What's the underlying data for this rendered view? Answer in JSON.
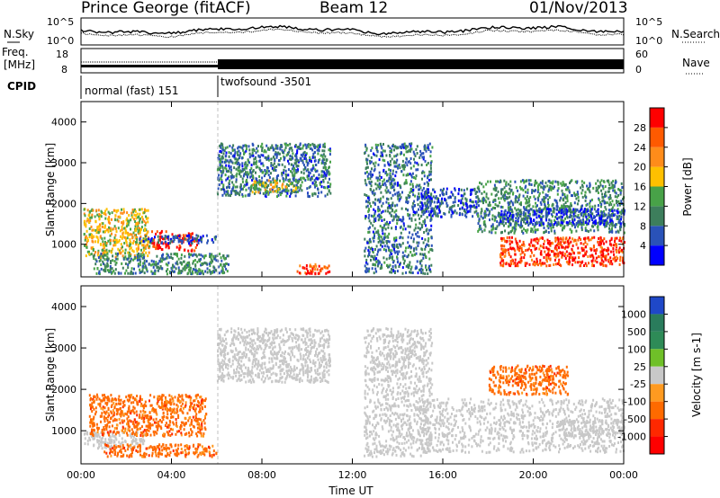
{
  "header": {
    "station": "Prince George (fitACF)",
    "beam": "Beam 12",
    "date": "01/Nov/2013"
  },
  "summary": {
    "nsky_label": "N.Sky",
    "nsearch_label": "N.Search",
    "noise_ticks": [
      "10^5",
      "10^0"
    ],
    "freq_label_1": "Freq.",
    "freq_label_2": "[MHz]",
    "freq_ticks": [
      "18",
      "8"
    ],
    "nave_label": "Nave",
    "nave_ticks": [
      "60",
      "0"
    ],
    "cpid_label": "CPID",
    "cpid_programs": [
      {
        "name": "normal (fast) 151",
        "start_hour": 0
      },
      {
        "name": "twofsound -3501",
        "start_hour": 6
      }
    ]
  },
  "colors": {
    "power_scale": [
      "#0000ff",
      "#2a52b8",
      "#3d7e5c",
      "#48a248",
      "#ffc000",
      "#ff8c1a",
      "#ff5a00",
      "#ff0000"
    ],
    "velocity_scale": [
      "#1f48c8",
      "#2a7c5c",
      "#2e8b57",
      "#6fc028",
      "#c8c8c8",
      "#ff9a20",
      "#ff6a00",
      "#ff2800",
      "#ff0000"
    ]
  },
  "chart_data": [
    {
      "type": "heatmap",
      "panel": "power",
      "ylabel": "Slant Range [km]",
      "xlabel": "",
      "x_ticks": [
        "00:00",
        "04:00",
        "08:00",
        "12:00",
        "16:00",
        "20:00",
        "00:00"
      ],
      "y_ticks": [
        "1000",
        "2000",
        "3000",
        "4000"
      ],
      "xlim_hours": [
        0,
        24
      ],
      "ylim_km": [
        200,
        4500
      ],
      "colorbar": {
        "label": "Power [dB]",
        "ticks": [
          "4",
          "8",
          "12",
          "16",
          "20",
          "24",
          "28"
        ],
        "range": [
          0,
          30
        ]
      },
      "regions": [
        {
          "t0": 0.1,
          "t1": 3.0,
          "r0": 700,
          "r1": 1900,
          "value": 17
        },
        {
          "t0": 3.1,
          "t1": 4.0,
          "r0": 900,
          "r1": 1350,
          "value": 28
        },
        {
          "t0": 4.2,
          "t1": 5.1,
          "r0": 850,
          "r1": 1300,
          "value": 28
        },
        {
          "t0": 0.5,
          "t1": 6.5,
          "r0": 300,
          "r1": 800,
          "value": 10
        },
        {
          "t0": 2.5,
          "t1": 6.0,
          "r0": 1050,
          "r1": 1250,
          "value": 6
        },
        {
          "t0": 6.0,
          "t1": 11.0,
          "r0": 2200,
          "r1": 3500,
          "value": 8
        },
        {
          "t0": 7.5,
          "t1": 9.5,
          "r0": 2300,
          "r1": 2600,
          "value": 16
        },
        {
          "t0": 9.5,
          "t1": 11.0,
          "r0": 300,
          "r1": 550,
          "value": 24
        },
        {
          "t0": 12.5,
          "t1": 15.5,
          "r0": 300,
          "r1": 3500,
          "value": 8
        },
        {
          "t0": 15.0,
          "t1": 17.5,
          "r0": 1700,
          "r1": 2400,
          "value": 6
        },
        {
          "t0": 17.5,
          "t1": 24.0,
          "r0": 1300,
          "r1": 2600,
          "value": 10
        },
        {
          "t0": 18.5,
          "t1": 24.0,
          "r0": 500,
          "r1": 1200,
          "value": 26
        },
        {
          "t0": 18.5,
          "t1": 24.0,
          "r0": 1500,
          "r1": 1900,
          "value": 5
        }
      ]
    },
    {
      "type": "heatmap",
      "panel": "velocity",
      "ylabel": "Slant Range [km]",
      "xlabel": "Time UT",
      "x_ticks": [
        "00:00",
        "04:00",
        "08:00",
        "12:00",
        "16:00",
        "20:00",
        "00:00"
      ],
      "y_ticks": [
        "1000",
        "2000",
        "3000",
        "4000"
      ],
      "xlim_hours": [
        0,
        24
      ],
      "ylim_km": [
        200,
        4500
      ],
      "colorbar": {
        "label": "Velocity [m s-1]",
        "ticks": [
          "1000",
          "500",
          "100",
          "25",
          "-25",
          "-100",
          "-500",
          "-1000"
        ],
        "range": [
          -1000,
          1000
        ]
      },
      "regions": [
        {
          "t0": 0.1,
          "t1": 2.8,
          "r0": 600,
          "r1": 1000,
          "value": 0
        },
        {
          "t0": 0.3,
          "t1": 5.5,
          "r0": 900,
          "r1": 1900,
          "value": -300
        },
        {
          "t0": 1.0,
          "t1": 6.0,
          "r0": 400,
          "r1": 700,
          "value": -300
        },
        {
          "t0": 6.0,
          "t1": 11.0,
          "r0": 2200,
          "r1": 3500,
          "value": 0
        },
        {
          "t0": 12.5,
          "t1": 15.5,
          "r0": 400,
          "r1": 3500,
          "value": 0
        },
        {
          "t0": 15.0,
          "t1": 24.0,
          "r0": 500,
          "r1": 1800,
          "value": 0
        },
        {
          "t0": 18.0,
          "t1": 21.5,
          "r0": 1900,
          "r1": 2600,
          "value": -300
        },
        {
          "t0": 21.0,
          "t1": 24.0,
          "r0": 900,
          "r1": 1300,
          "value": 0
        }
      ]
    }
  ]
}
